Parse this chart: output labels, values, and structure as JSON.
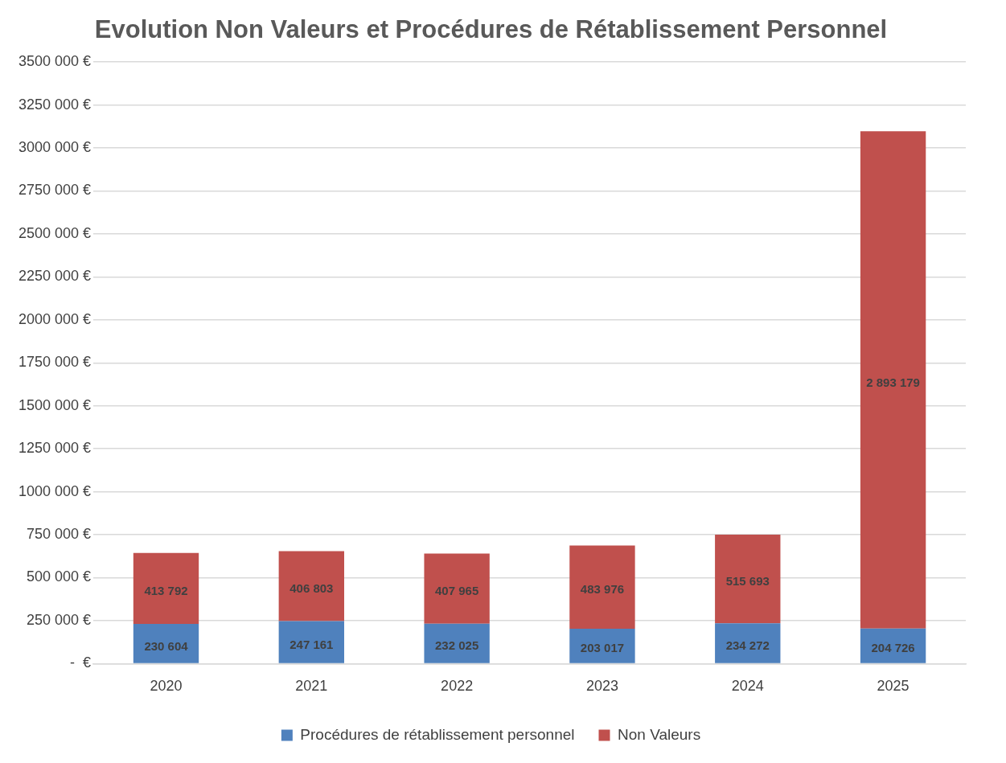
{
  "chart_data": {
    "type": "bar",
    "title": "Evolution Non Valeurs et Procédures de Rétablissement Personnel",
    "categories": [
      "2020",
      "2021",
      "2022",
      "2023",
      "2024",
      "2025"
    ],
    "stacked": true,
    "data_labels": true,
    "grid": "y",
    "legend": "bottom",
    "series": [
      {
        "name": "Procédures de rétablissement personnel",
        "color": "#4f81bd",
        "values": [
          230604,
          247161,
          232025,
          203017,
          234272,
          204726
        ]
      },
      {
        "name": "Non Valeurs",
        "color": "#c0504d",
        "values": [
          413792,
          406803,
          407965,
          483976,
          515693,
          2893179
        ]
      }
    ],
    "ylim": [
      0,
      3500000
    ],
    "yticks": [
      {
        "value": 0,
        "label": "-  €"
      },
      {
        "value": 250000,
        "label": "250 000 €"
      },
      {
        "value": 500000,
        "label": "500 000 €"
      },
      {
        "value": 750000,
        "label": "750 000 €"
      },
      {
        "value": 1000000,
        "label": "1000 000 €"
      },
      {
        "value": 1250000,
        "label": "1250 000 €"
      },
      {
        "value": 1500000,
        "label": "1500 000 €"
      },
      {
        "value": 1750000,
        "label": "1750 000 €"
      },
      {
        "value": 2000000,
        "label": "2000 000 €"
      },
      {
        "value": 2250000,
        "label": "2250 000 €"
      },
      {
        "value": 2500000,
        "label": "2500 000 €"
      },
      {
        "value": 2750000,
        "label": "2750 000 €"
      },
      {
        "value": 3000000,
        "label": "3000 000 €"
      },
      {
        "value": 3250000,
        "label": "3250 000 €"
      },
      {
        "value": 3500000,
        "label": "3500 000 €"
      }
    ]
  }
}
